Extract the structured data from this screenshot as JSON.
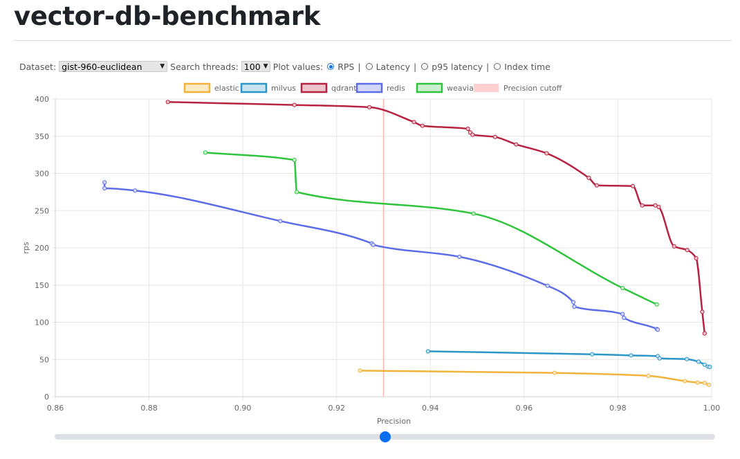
{
  "page": {
    "title": "vector-db-benchmark"
  },
  "controls": {
    "dataset_label": "Dataset:",
    "dataset_value": "gist-960-euclidean",
    "threads_label": "Search threads:",
    "threads_value": "100",
    "plot_label": "Plot values:",
    "options": [
      {
        "label": "RPS",
        "checked": true
      },
      {
        "label": "Latency",
        "checked": false
      },
      {
        "label": "p95 latency",
        "checked": false
      },
      {
        "label": "Index time",
        "checked": false
      }
    ]
  },
  "slider": {
    "value_fraction": 0.5
  },
  "chart_data": {
    "type": "line",
    "xlabel": "Precision",
    "ylabel": "rps",
    "xlim": [
      0.86,
      1.0
    ],
    "ylim": [
      0,
      400
    ],
    "x_ticks": [
      "0.86",
      "0.88",
      "0.90",
      "0.92",
      "0.94",
      "0.96",
      "0.98",
      "1.00"
    ],
    "y_ticks": [
      "0",
      "50",
      "100",
      "150",
      "200",
      "250",
      "300",
      "350",
      "400"
    ],
    "grid": true,
    "legend_position": "top",
    "precision_cutoff": {
      "label": "Precision cutoff",
      "x": 0.93,
      "color": "#ffb3b3"
    },
    "series": [
      {
        "name": "elastic",
        "color": "#f2b33d",
        "fill": "#fbe9c6",
        "points": [
          [
            0.925,
            35
          ],
          [
            0.9665,
            32
          ],
          [
            0.9865,
            28
          ],
          [
            0.9943,
            21
          ],
          [
            0.997,
            19
          ],
          [
            0.9985,
            18.5
          ],
          [
            0.9994,
            16
          ]
        ]
      },
      {
        "name": "milvus",
        "color": "#2b96c8",
        "fill": "#c9e3f0",
        "points": [
          [
            0.9395,
            61
          ],
          [
            0.9745,
            57
          ],
          [
            0.9828,
            55.5
          ],
          [
            0.9885,
            54.5
          ],
          [
            0.9889,
            51.5
          ],
          [
            0.9947,
            50.5
          ],
          [
            0.9972,
            47
          ],
          [
            0.9985,
            43
          ],
          [
            0.9992,
            40.5
          ],
          [
            0.9996,
            40
          ]
        ]
      },
      {
        "name": "qdrant",
        "color": "#b72240",
        "fill": "#ecc4cc",
        "points": [
          [
            0.884,
            396
          ],
          [
            0.911,
            392
          ],
          [
            0.927,
            389
          ],
          [
            0.9365,
            369
          ],
          [
            0.9383,
            364
          ],
          [
            0.948,
            360
          ],
          [
            0.9485,
            355
          ],
          [
            0.949,
            352
          ],
          [
            0.9538,
            349
          ],
          [
            0.9583,
            339
          ],
          [
            0.9648,
            327
          ],
          [
            0.9738,
            294
          ],
          [
            0.9755,
            284
          ],
          [
            0.9832,
            283
          ],
          [
            0.9852,
            257
          ],
          [
            0.988,
            257
          ],
          [
            0.9887,
            255
          ],
          [
            0.992,
            202
          ],
          [
            0.9948,
            197
          ],
          [
            0.9967,
            186
          ],
          [
            0.998,
            114
          ],
          [
            0.9985,
            85
          ]
        ]
      },
      {
        "name": "redis",
        "color": "#5c6ce8",
        "fill": "#d3d7f8",
        "points": [
          [
            0.8705,
            288
          ],
          [
            0.8705,
            280
          ],
          [
            0.877,
            277
          ],
          [
            0.908,
            236
          ],
          [
            0.9275,
            206
          ],
          [
            0.9278,
            204
          ],
          [
            0.9462,
            188
          ],
          [
            0.965,
            149
          ],
          [
            0.9705,
            127
          ],
          [
            0.9707,
            121
          ],
          [
            0.981,
            111
          ],
          [
            0.9813,
            106
          ],
          [
            0.9883,
            91
          ],
          [
            0.9885,
            90
          ]
        ]
      },
      {
        "name": "weaviate",
        "color": "#2ec43c",
        "fill": "#cdefd0",
        "points": [
          [
            0.892,
            328
          ],
          [
            0.911,
            318
          ],
          [
            0.9115,
            275
          ],
          [
            0.9492,
            246
          ],
          [
            0.981,
            146
          ],
          [
            0.9883,
            124
          ]
        ]
      }
    ]
  }
}
